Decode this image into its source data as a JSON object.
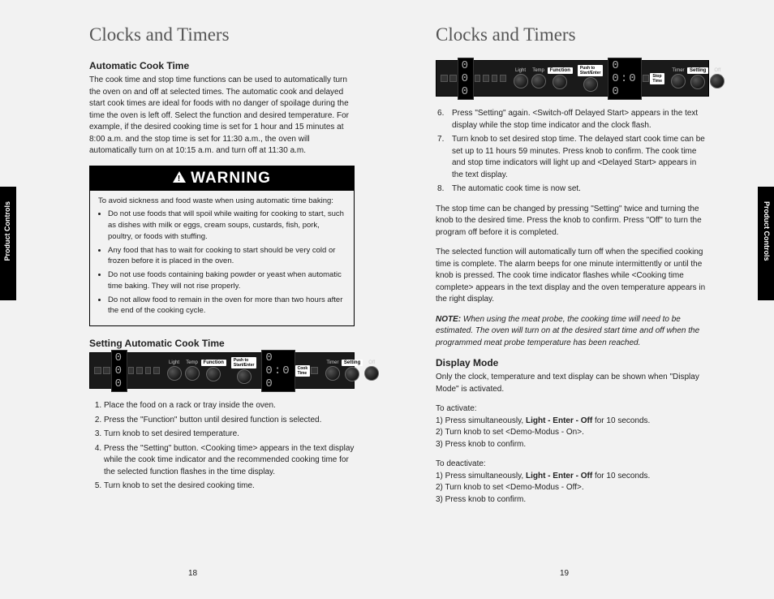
{
  "tab_label": "Product Controls",
  "left": {
    "title": "Clocks and Timers",
    "sec1_heading": "Automatic Cook Time",
    "sec1_body": "The cook time and stop time functions can be used to automatically turn the oven on and off at selected times. The automatic cook and delayed start cook times are ideal for foods with no danger of spoilage during the time the oven is left off. Select the function and desired temperature. For example, if the desired cooking time is set for 1 hour and 15 minutes at 8:00 a.m. and the stop time is set for 11:30 a.m., the oven will automatically turn on at 10:15 a.m. and turn off at 11:30 a.m.",
    "warning_label": "WARNING",
    "warning_intro": "To avoid sickness and food waste when using automatic time baking:",
    "warning_items": [
      "Do not use foods that will spoil while waiting for cooking to start, such as dishes with milk or eggs, cream soups, custards, fish, pork, poultry, or foods with stuffing.",
      "Any food that has to wait for cooking to start should be very cold or frozen before it is placed in the oven.",
      "Do not use foods containing baking powder or yeast when automatic time baking. They will not rise properly.",
      "Do not allow food to remain in the oven for more than two hours after the end of the cooking cycle."
    ],
    "sec2_heading": "Setting Automatic Cook Time",
    "steps": [
      "Place the food on a rack or tray inside the oven.",
      "Press the \"Function\" button until desired function is selected.",
      "Turn knob to set desired temperature.",
      "Press the \"Setting\" button. <Cooking time> appears in the text display while the cook time indicator and the recommended cooking time for the selected function flashes in the time display.",
      "Turn knob to set the desired cooking time."
    ],
    "panel": {
      "seg1": "0 0 0",
      "seg2": "0 0:0 0",
      "labels": {
        "light": "Light",
        "temp": "Temp",
        "function": "Function",
        "push": "Push to Start/Enter",
        "timer": "Timer",
        "setting": "Setting",
        "off": "Off",
        "cook": "Cook Time"
      }
    },
    "pagenum": "18"
  },
  "right": {
    "title": "Clocks and Timers",
    "panel": {
      "seg1": "0 0 0",
      "seg2": "0 0:0 0",
      "labels": {
        "light": "Light",
        "temp": "Temp",
        "function": "Function",
        "push": "Push to Start/Enter",
        "timer": "Timer",
        "setting": "Setting",
        "off": "Off",
        "stop": "Stop Time"
      }
    },
    "steps6_8": [
      "Press \"Setting\" again. <Switch-off Delayed Start> appears in the text display while the stop time indicator and the clock flash.",
      "Turn knob to set desired stop time. The delayed start cook time can be set up to 11 hours 59 minutes. Press knob to confirm. The cook time and stop time indicators will light up and <Delayed Start> appears in the text display.",
      "The automatic cook time is now set."
    ],
    "para1": "The stop time can be changed by pressing \"Setting\" twice and turning the knob to the desired time. Press the knob to confirm. Press \"Off\" to turn the program off before it is completed.",
    "para2": "The selected function will automatically turn off when the specified cooking time is complete. The alarm beeps for one minute intermittently or until the knob is pressed. The cook time indicator flashes while <Cooking time complete> appears in the text display and the oven temperature appears in the right display.",
    "note_label": "NOTE:",
    "note_body": "When using the meat probe, the cooking time will need to be estimated. The oven will turn on at the desired start time and off when the programmed meat probe temperature has been reached.",
    "sec_heading": "Display Mode",
    "sec_body": "Only the clock, temperature and text display can be shown when \"Display Mode\" is activated.",
    "activate_label": "To activate:",
    "activate_steps": [
      "1) Press simultaneously, Light - Enter - Off for 10 seconds.",
      "2) Turn knob to set <Demo-Modus - On>.",
      "3) Press knob to confirm."
    ],
    "deactivate_label": "To deactivate:",
    "deactivate_steps": [
      "1) Press simultaneously, Light - Enter - Off for 10 seconds.",
      "2) Turn knob to set <Demo-Modus - Off>.",
      "3) Press knob to confirm."
    ],
    "pagenum": "19"
  }
}
